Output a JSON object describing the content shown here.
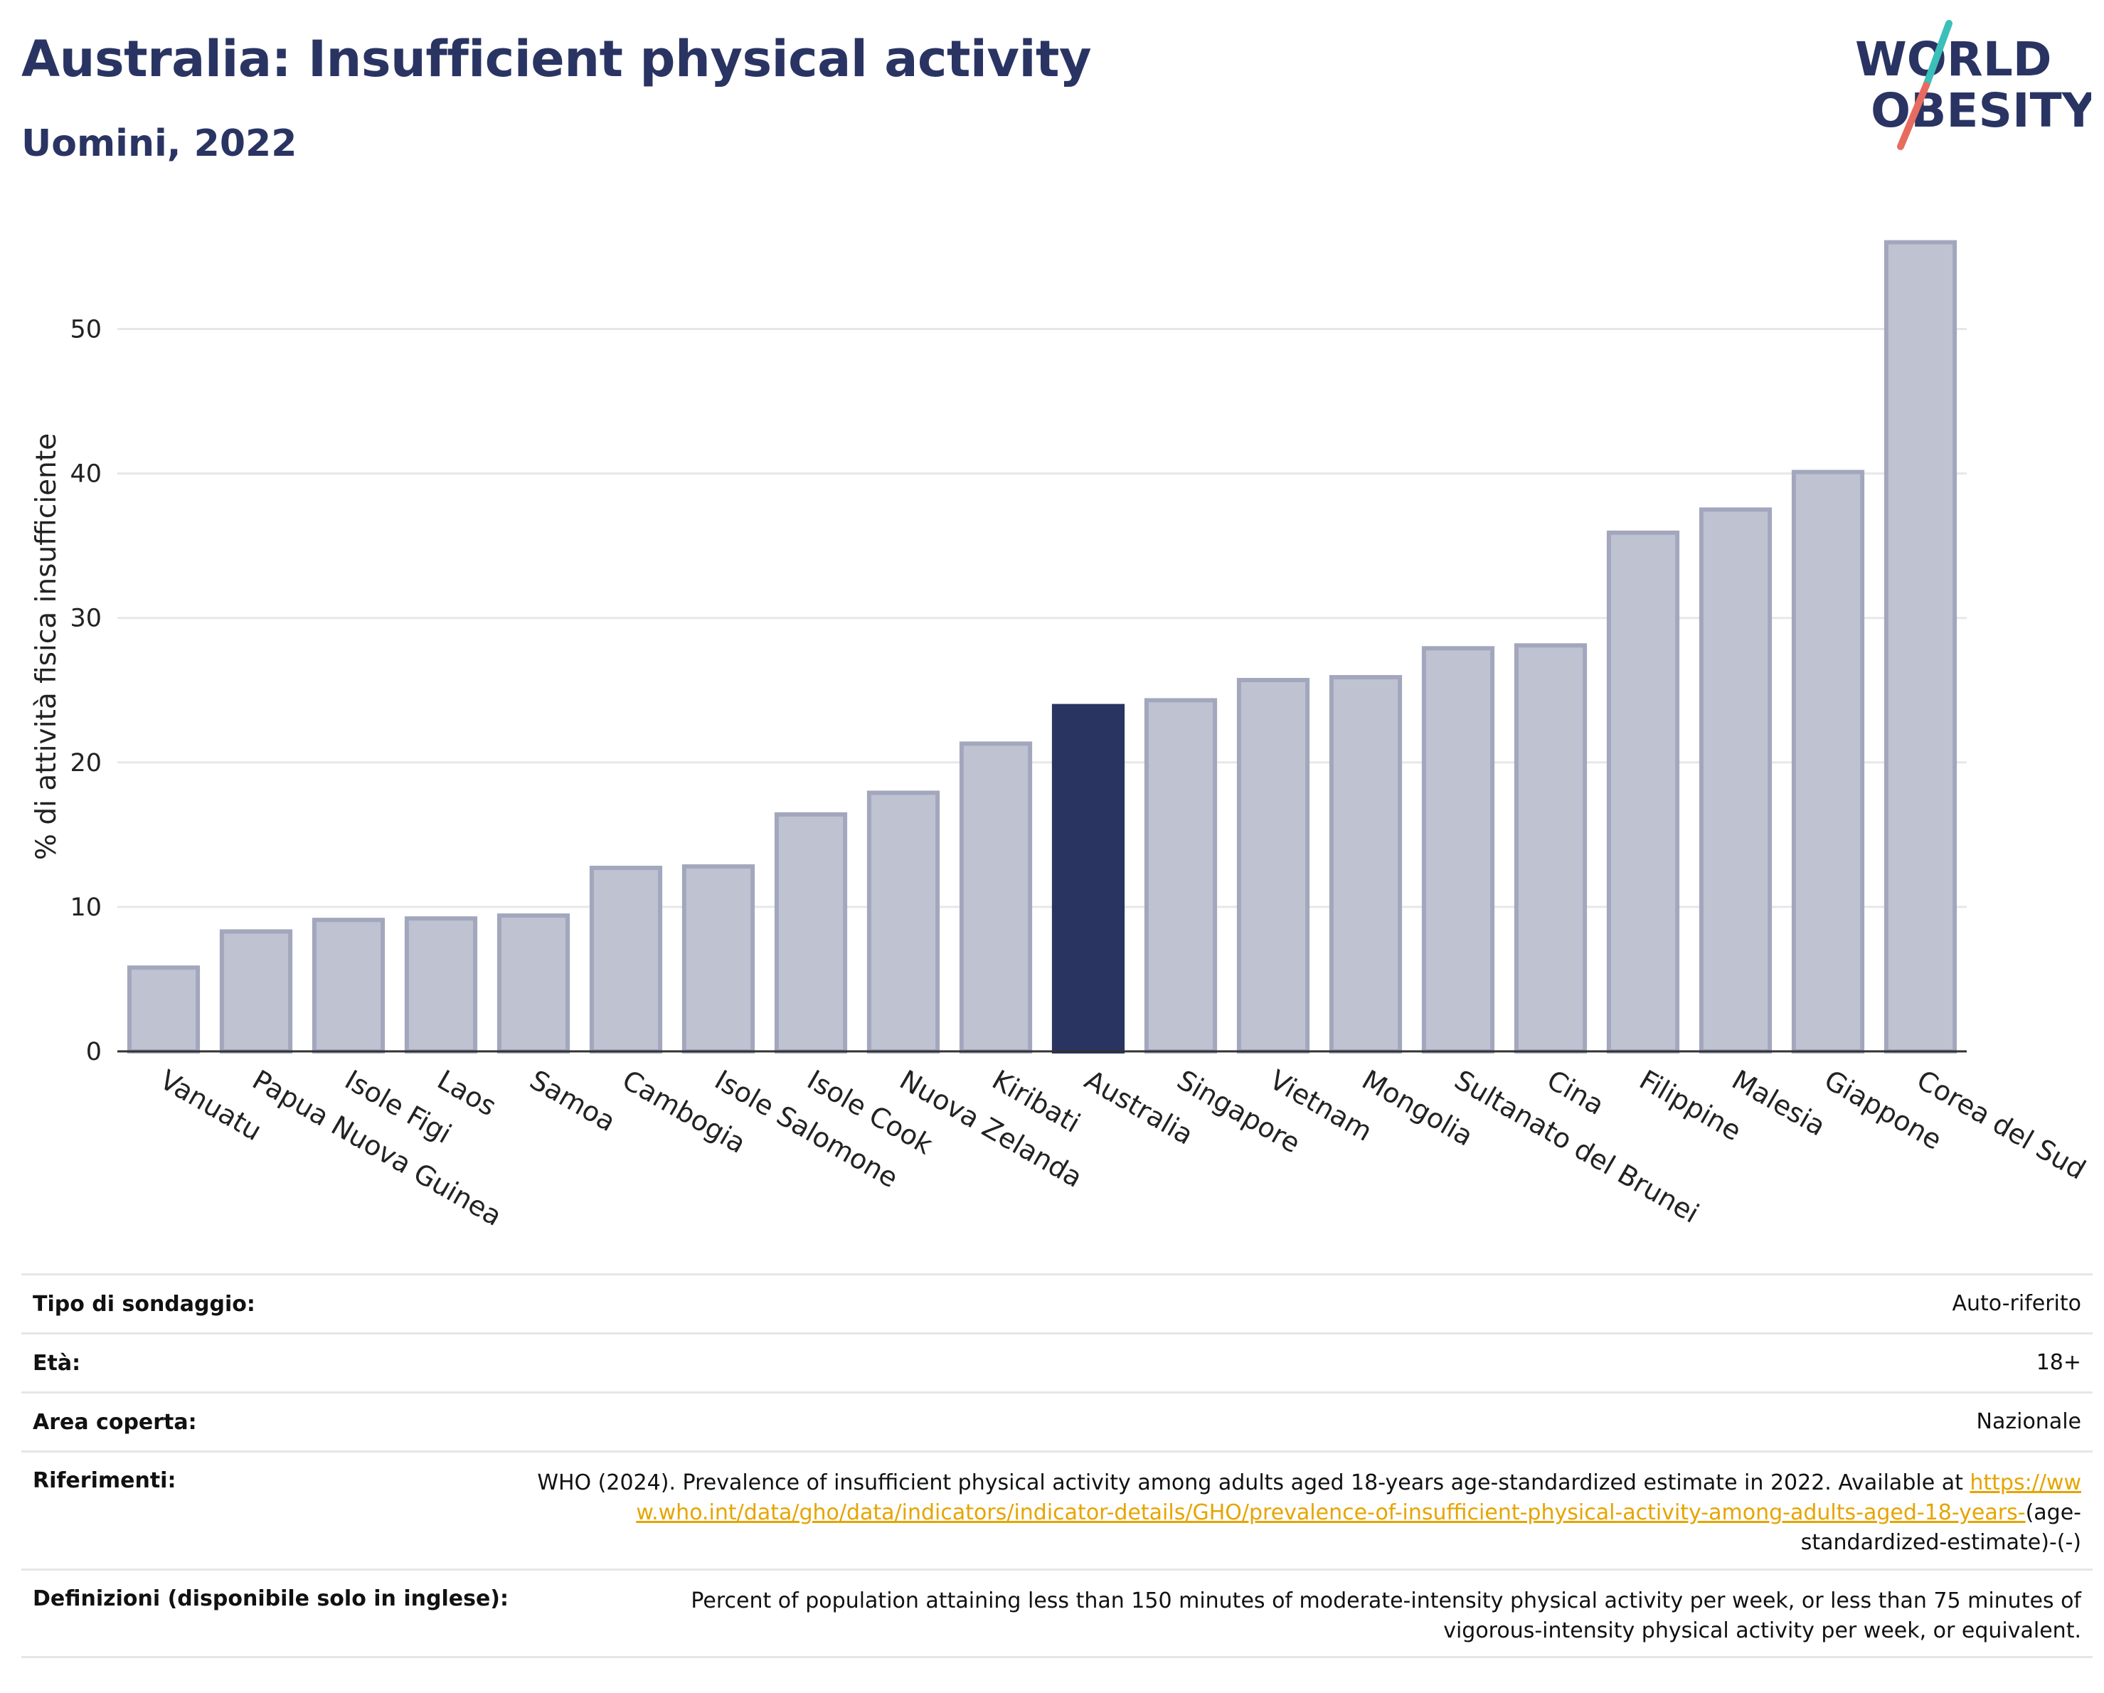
{
  "header": {
    "title": "Australia: Insufficient physical activity",
    "subtitle": "Uomini, 2022"
  },
  "logo": {
    "line1": "WORLD",
    "line2": "OBESITY",
    "slash_color_top": "#3bbfb9",
    "slash_color_bottom": "#e86b5f"
  },
  "colors": {
    "bar_default": "#bfc2d1",
    "bar_default_stroke": "#a3a7bd",
    "bar_highlight": "#2a3461",
    "text_primary": "#2a3463",
    "link": "#e6a400"
  },
  "chart_data": {
    "type": "bar",
    "title": "Australia: Insufficient physical activity",
    "subtitle": "Uomini, 2022",
    "ylabel": "% di attività fisica insufficiente",
    "xlabel": "",
    "ylim": [
      0,
      58
    ],
    "yticks": [
      0,
      10,
      20,
      30,
      40,
      50
    ],
    "grid": true,
    "highlight": "Australia",
    "categories": [
      "Vanuatu",
      "Papua Nuova Guinea",
      "Isole Figi",
      "Laos",
      "Samoa",
      "Cambogia",
      "Isole Salomone",
      "Isole Cook",
      "Nuova Zelanda",
      "Kiribati",
      "Australia",
      "Singapore",
      "Vietnam",
      "Mongolia",
      "Sultanato del Brunei",
      "Cina",
      "Filippine",
      "Malesia",
      "Giappone",
      "Corea del Sud"
    ],
    "values": [
      5.8,
      8.3,
      9.1,
      9.2,
      9.4,
      12.7,
      12.8,
      16.4,
      17.9,
      21.3,
      23.9,
      24.3,
      25.7,
      25.9,
      27.9,
      28.1,
      35.9,
      37.5,
      40.1,
      56.0
    ]
  },
  "info": {
    "rows": [
      {
        "key": "Tipo di sondaggio:",
        "value": "Auto-riferito"
      },
      {
        "key": "Età:",
        "value": "18+"
      },
      {
        "key": "Area coperta:",
        "value": "Nazionale"
      },
      {
        "key": "Riferimenti:",
        "value": "WHO (2024). Prevalence of insufficient physical activity among adults aged 18-years age-standardized estimate in 2022. Available at",
        "link": "https://www.who.int/data/gho/data/indicators/indicator-details/GHO/prevalence-of-insufficient-physical-activity-among-adults-aged-18-years-",
        "suffix": "(age-standardized-estimate)-(-)"
      },
      {
        "key": "Definizioni (disponibile solo in inglese):",
        "value": "Percent of population attaining less than 150 minutes of moderate-intensity physical activity per week, or less than 75 minutes of vigorous-intensity physical activity per week, or equivalent."
      }
    ]
  }
}
